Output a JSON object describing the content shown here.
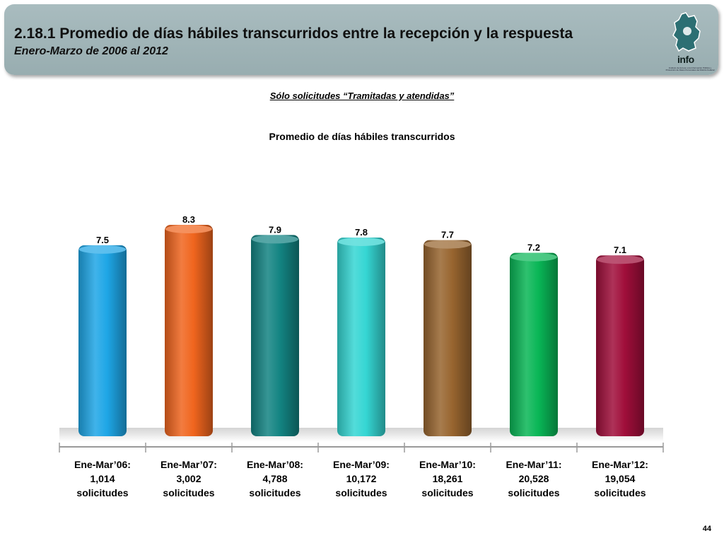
{
  "header": {
    "title": "2.18.1 Promedio de días hábiles transcurridos entre la recepción y la respuesta",
    "subtitle": "Enero-Marzo de 2006 al 2012",
    "logo_text": "info",
    "logo_small_text": "Instituto de Acceso a la Información Pública y Protección de Datos Personales del Distrito Federal"
  },
  "note": "Sólo solicitudes “Tramitadas y atendidas”",
  "page_number": "44",
  "chart_data": {
    "type": "bar",
    "title": "Promedio de días hábiles transcurridos",
    "xlabel": "",
    "ylabel": "",
    "ylim": [
      0,
      8.3
    ],
    "grid": false,
    "categories": [
      [
        "Ene-Mar’06:",
        "1,014",
        "solicitudes"
      ],
      [
        "Ene-Mar’07:",
        "3,002",
        "solicitudes"
      ],
      [
        "Ene-Mar’08:",
        "4,788",
        "solicitudes"
      ],
      [
        "Ene-Mar’09:",
        "10,172",
        "solicitudes"
      ],
      [
        "Ene-Mar’10:",
        "18,261",
        "solicitudes"
      ],
      [
        "Ene-Mar’11:",
        "20,528",
        "solicitudes"
      ],
      [
        "Ene-Mar’12:",
        "19,054",
        "solicitudes"
      ]
    ],
    "values": [
      7.5,
      8.3,
      7.9,
      7.8,
      7.7,
      7.2,
      7.1
    ],
    "value_labels": [
      "7.5",
      "8.3",
      "7.9",
      "7.8",
      "7.7",
      "7.2",
      "7.1"
    ],
    "colors": [
      "#1ea6e6",
      "#f0651e",
      "#138482",
      "#35d6d3",
      "#98652f",
      "#09b656",
      "#a00e3a"
    ]
  }
}
